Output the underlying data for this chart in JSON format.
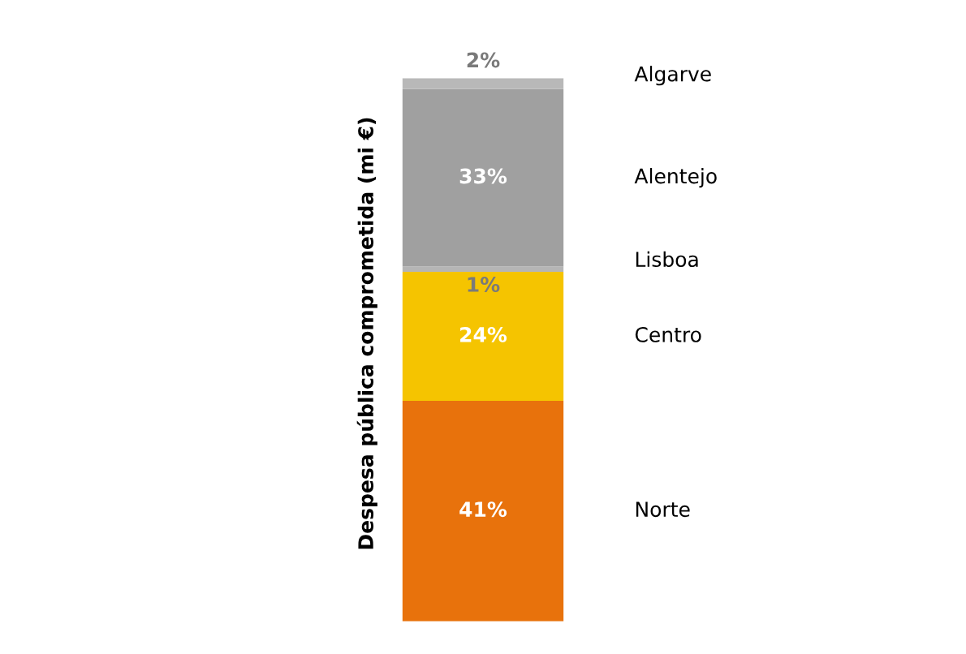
{
  "chart_data": {
    "type": "bar",
    "stacked": true,
    "ylabel": "Despesa pública comprometida (mi €)",
    "categories": [
      null
    ],
    "legend": false,
    "grid": false,
    "series": [
      {
        "name": "Norte",
        "color": "#e8720c",
        "values": [
          41
        ],
        "value_labels": [
          "41%"
        ]
      },
      {
        "name": "Centro",
        "color": "#f5c400",
        "values": [
          24
        ],
        "value_labels": [
          "24%"
        ]
      },
      {
        "name": "Lisboa",
        "color": "#b5b5b5",
        "values": [
          1
        ],
        "value_labels": [
          "1%"
        ]
      },
      {
        "name": "Alentejo",
        "color": "#a0a0a0",
        "values": [
          33
        ],
        "value_labels": [
          "33%"
        ]
      },
      {
        "name": "Algarve",
        "color": "#b8b8b8",
        "values": [
          2
        ],
        "value_labels": [
          "2%"
        ]
      }
    ]
  }
}
